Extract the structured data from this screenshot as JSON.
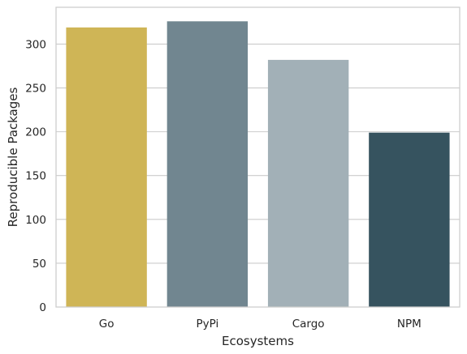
{
  "chart_data": {
    "type": "bar",
    "title": "",
    "xlabel": "Ecosystems",
    "ylabel": "Reproducible Packages",
    "categories": [
      "Go",
      "PyPi",
      "Cargo",
      "NPM"
    ],
    "values": [
      319,
      326,
      282,
      199
    ],
    "colors": [
      "#cfb556",
      "#718690",
      "#a2b0b7",
      "#36535f"
    ],
    "ylim": [
      0,
      342
    ],
    "yticks": [
      0,
      50,
      100,
      150,
      200,
      250,
      300
    ],
    "grid": "horizontal",
    "legend": "none"
  }
}
